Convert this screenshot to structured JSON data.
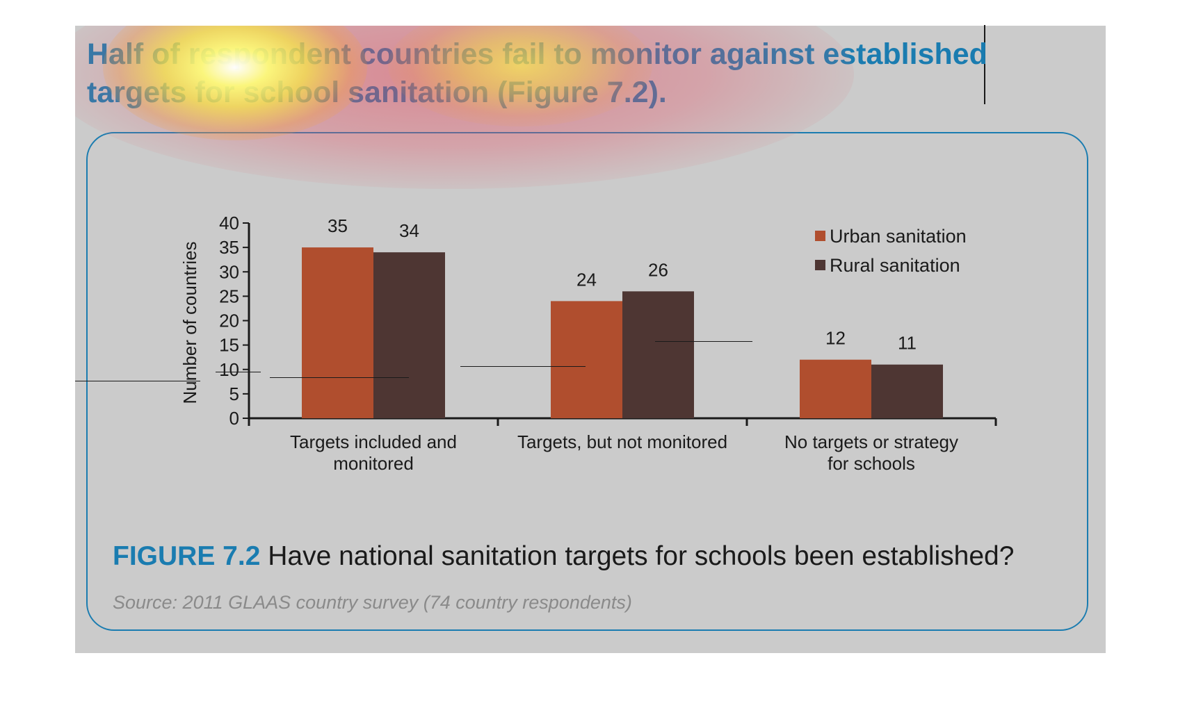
{
  "headline": "Half of respondent countries fail to monitor against established targets for school sanitation (Figure 7.2).",
  "colors": {
    "panel_background": "#cbcbcb",
    "accent_blue": "#1a7cb0",
    "urban": "#b04e2e",
    "rural": "#4e3633"
  },
  "figure": {
    "number_label": "FIGURE 7.2",
    "caption_text": "Have national sanitation targets for schools been established?",
    "source": "Source: 2011 GLAAS country survey (74 country respondents)"
  },
  "chart_data": {
    "type": "bar",
    "categories": [
      [
        "Targets included and",
        "monitored"
      ],
      [
        "Targets, but not monitored"
      ],
      [
        "No targets or strategy",
        "for schools"
      ]
    ],
    "series": [
      {
        "name": "Urban sanitation",
        "color": "#b04e2e",
        "values": [
          35,
          24,
          12
        ]
      },
      {
        "name": "Rural sanitation",
        "color": "#4e3633",
        "values": [
          34,
          26,
          11
        ]
      }
    ],
    "ylabel": "Number of countries",
    "xlabel": "",
    "ylim": [
      0,
      40
    ],
    "yticks": [
      0,
      5,
      10,
      15,
      20,
      25,
      30,
      35,
      40
    ],
    "data_labels": true,
    "grid": false,
    "legend_position": "top-right"
  }
}
